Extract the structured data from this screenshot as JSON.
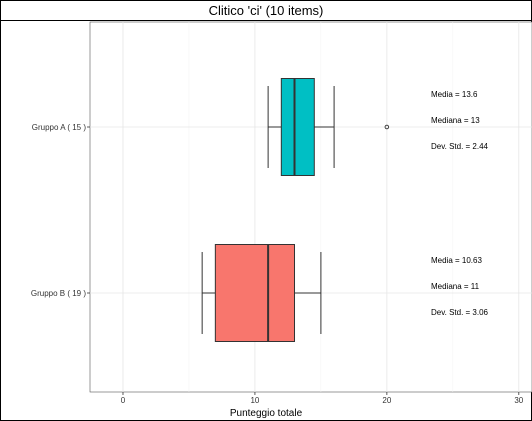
{
  "chart_data": {
    "type": "boxplot",
    "title": "Clitico 'ci' (10 items)",
    "xlabel": "Punteggio totale",
    "ylabel": "",
    "xlim": [
      -2.5,
      31
    ],
    "xticks": [
      0,
      10,
      20,
      30
    ],
    "grid": true,
    "orientation": "horizontal",
    "groups": [
      {
        "label": "Gruppo A ( 15 )",
        "color": "#00BFC4",
        "whisker_low": 11,
        "q1": 12,
        "median": 13,
        "q3": 14.5,
        "whisker_high": 16,
        "outliers": [
          20
        ],
        "stats": [
          "Media = 13.6",
          "Mediana = 13",
          "Dev. Std. = 2.44"
        ]
      },
      {
        "label": "Gruppo B ( 19 )",
        "color": "#F8766D",
        "whisker_low": 6,
        "q1": 7,
        "median": 11,
        "q3": 13,
        "whisker_high": 15,
        "outliers": [],
        "stats": [
          "Media = 10.63",
          "Mediana = 11",
          "Dev. Std. = 3.06"
        ]
      }
    ]
  }
}
